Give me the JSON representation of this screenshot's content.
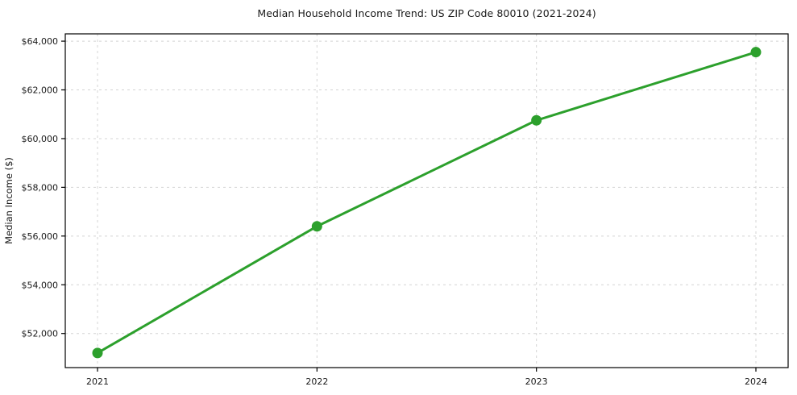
{
  "page": {
    "background": "#ffffff",
    "text_color": "#1a1a1a"
  },
  "chart_data": {
    "type": "line",
    "title": "Median Household Income Trend: US ZIP Code 80010 (2021-2024)",
    "xlabel": "",
    "ylabel": "Median Income ($)",
    "categories": [
      "2021",
      "2022",
      "2023",
      "2024"
    ],
    "x": [
      2021,
      2022,
      2023,
      2024
    ],
    "series": [
      {
        "name": "Median Household Income",
        "values": [
          51200,
          56400,
          60750,
          63550
        ],
        "color": "#2ca02c",
        "marker": "circle"
      }
    ],
    "y_ticks": [
      52000,
      54000,
      56000,
      58000,
      60000,
      62000,
      64000
    ],
    "y_tick_labels": [
      "$52,000",
      "$54,000",
      "$56,000",
      "$58,000",
      "$60,000",
      "$62,000",
      "$64,000"
    ],
    "ylim": [
      50600,
      64300
    ],
    "grid": {
      "visible": true,
      "style": "dashed",
      "color": "#d4d4d4"
    },
    "legend": "none",
    "plot_border": "box"
  }
}
